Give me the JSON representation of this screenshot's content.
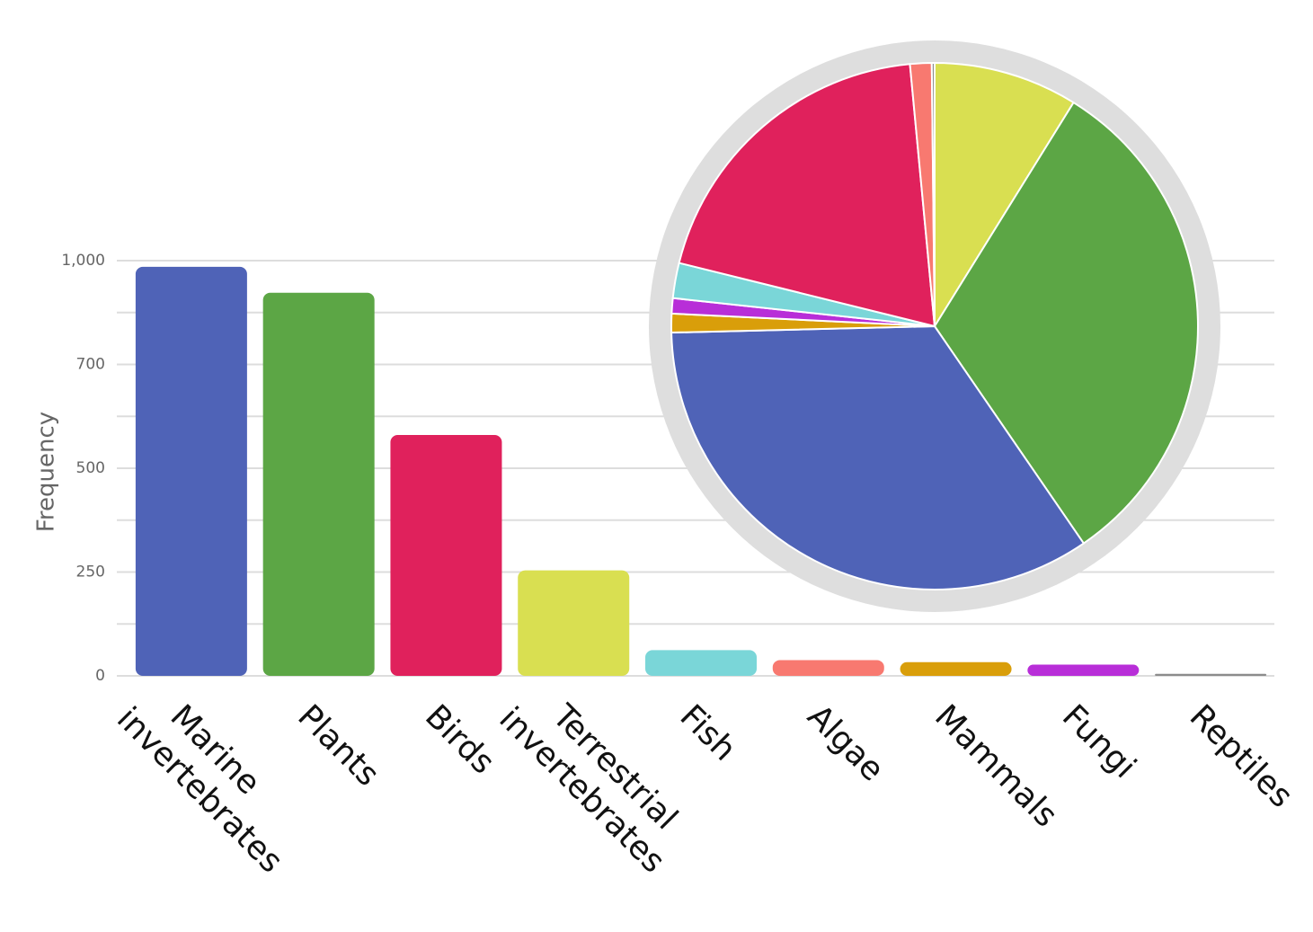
{
  "chart_data": [
    {
      "type": "bar",
      "y_label": "Frequency",
      "categories": [
        "Marine invertebrates",
        "Plants",
        "Birds",
        "Terrestrial invertebrates",
        "Fish",
        "Algae",
        "Mammals",
        "Fungi",
        "Reptiles"
      ],
      "values": [
        982,
        907,
        564,
        254,
        62,
        38,
        33,
        27,
        5
      ],
      "colors": [
        "#4f63b7",
        "#5ca645",
        "#e0215c",
        "#d9df51",
        "#7ad6d8",
        "#f87970",
        "#d99e0a",
        "#b82ed8",
        "#8c8c8c"
      ],
      "ylim": [
        0,
        1000
      ],
      "yticks": [
        0,
        250,
        500,
        700,
        {
          "value": 1000,
          "label": "1,000"
        }
      ],
      "yminor": [
        125,
        375,
        600,
        850
      ],
      "grid": true
    },
    {
      "type": "pie",
      "categories": [
        "Terrestrial invertebrates",
        "Plants",
        "Marine invertebrates",
        "Mammals",
        "Fungi",
        "Fish",
        "Birds",
        "Algae",
        "Reptiles"
      ],
      "values": [
        254,
        907,
        982,
        33,
        27,
        62,
        564,
        38,
        5
      ],
      "colors": [
        "#d9df51",
        "#5ca645",
        "#4f63b7",
        "#d99e0a",
        "#b82ed8",
        "#7ad6d8",
        "#e0215c",
        "#f87970",
        "#8c8c8c"
      ]
    }
  ]
}
